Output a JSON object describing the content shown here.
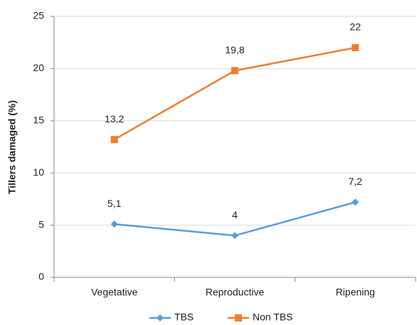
{
  "chart_data": {
    "type": "line",
    "y_label": "Tillers damaged (%)",
    "categories": [
      "Vegetative",
      "Reproductive",
      "Ripening"
    ],
    "series": [
      {
        "name": "TBS",
        "color": "#5b9bd5",
        "marker": "diamond",
        "values": [
          5.1,
          4,
          7.2
        ],
        "value_labels": [
          "5,1",
          "4",
          "7,2"
        ]
      },
      {
        "name": "Non TBS",
        "color": "#ed7d31",
        "marker": "square",
        "values": [
          13.2,
          19.8,
          22
        ],
        "value_labels": [
          "13,2",
          "19,8",
          "22"
        ]
      }
    ],
    "ylim": [
      0,
      25
    ],
    "yticks": [
      0,
      5,
      10,
      15,
      20,
      25
    ],
    "grid": true,
    "legend": "bottom"
  }
}
